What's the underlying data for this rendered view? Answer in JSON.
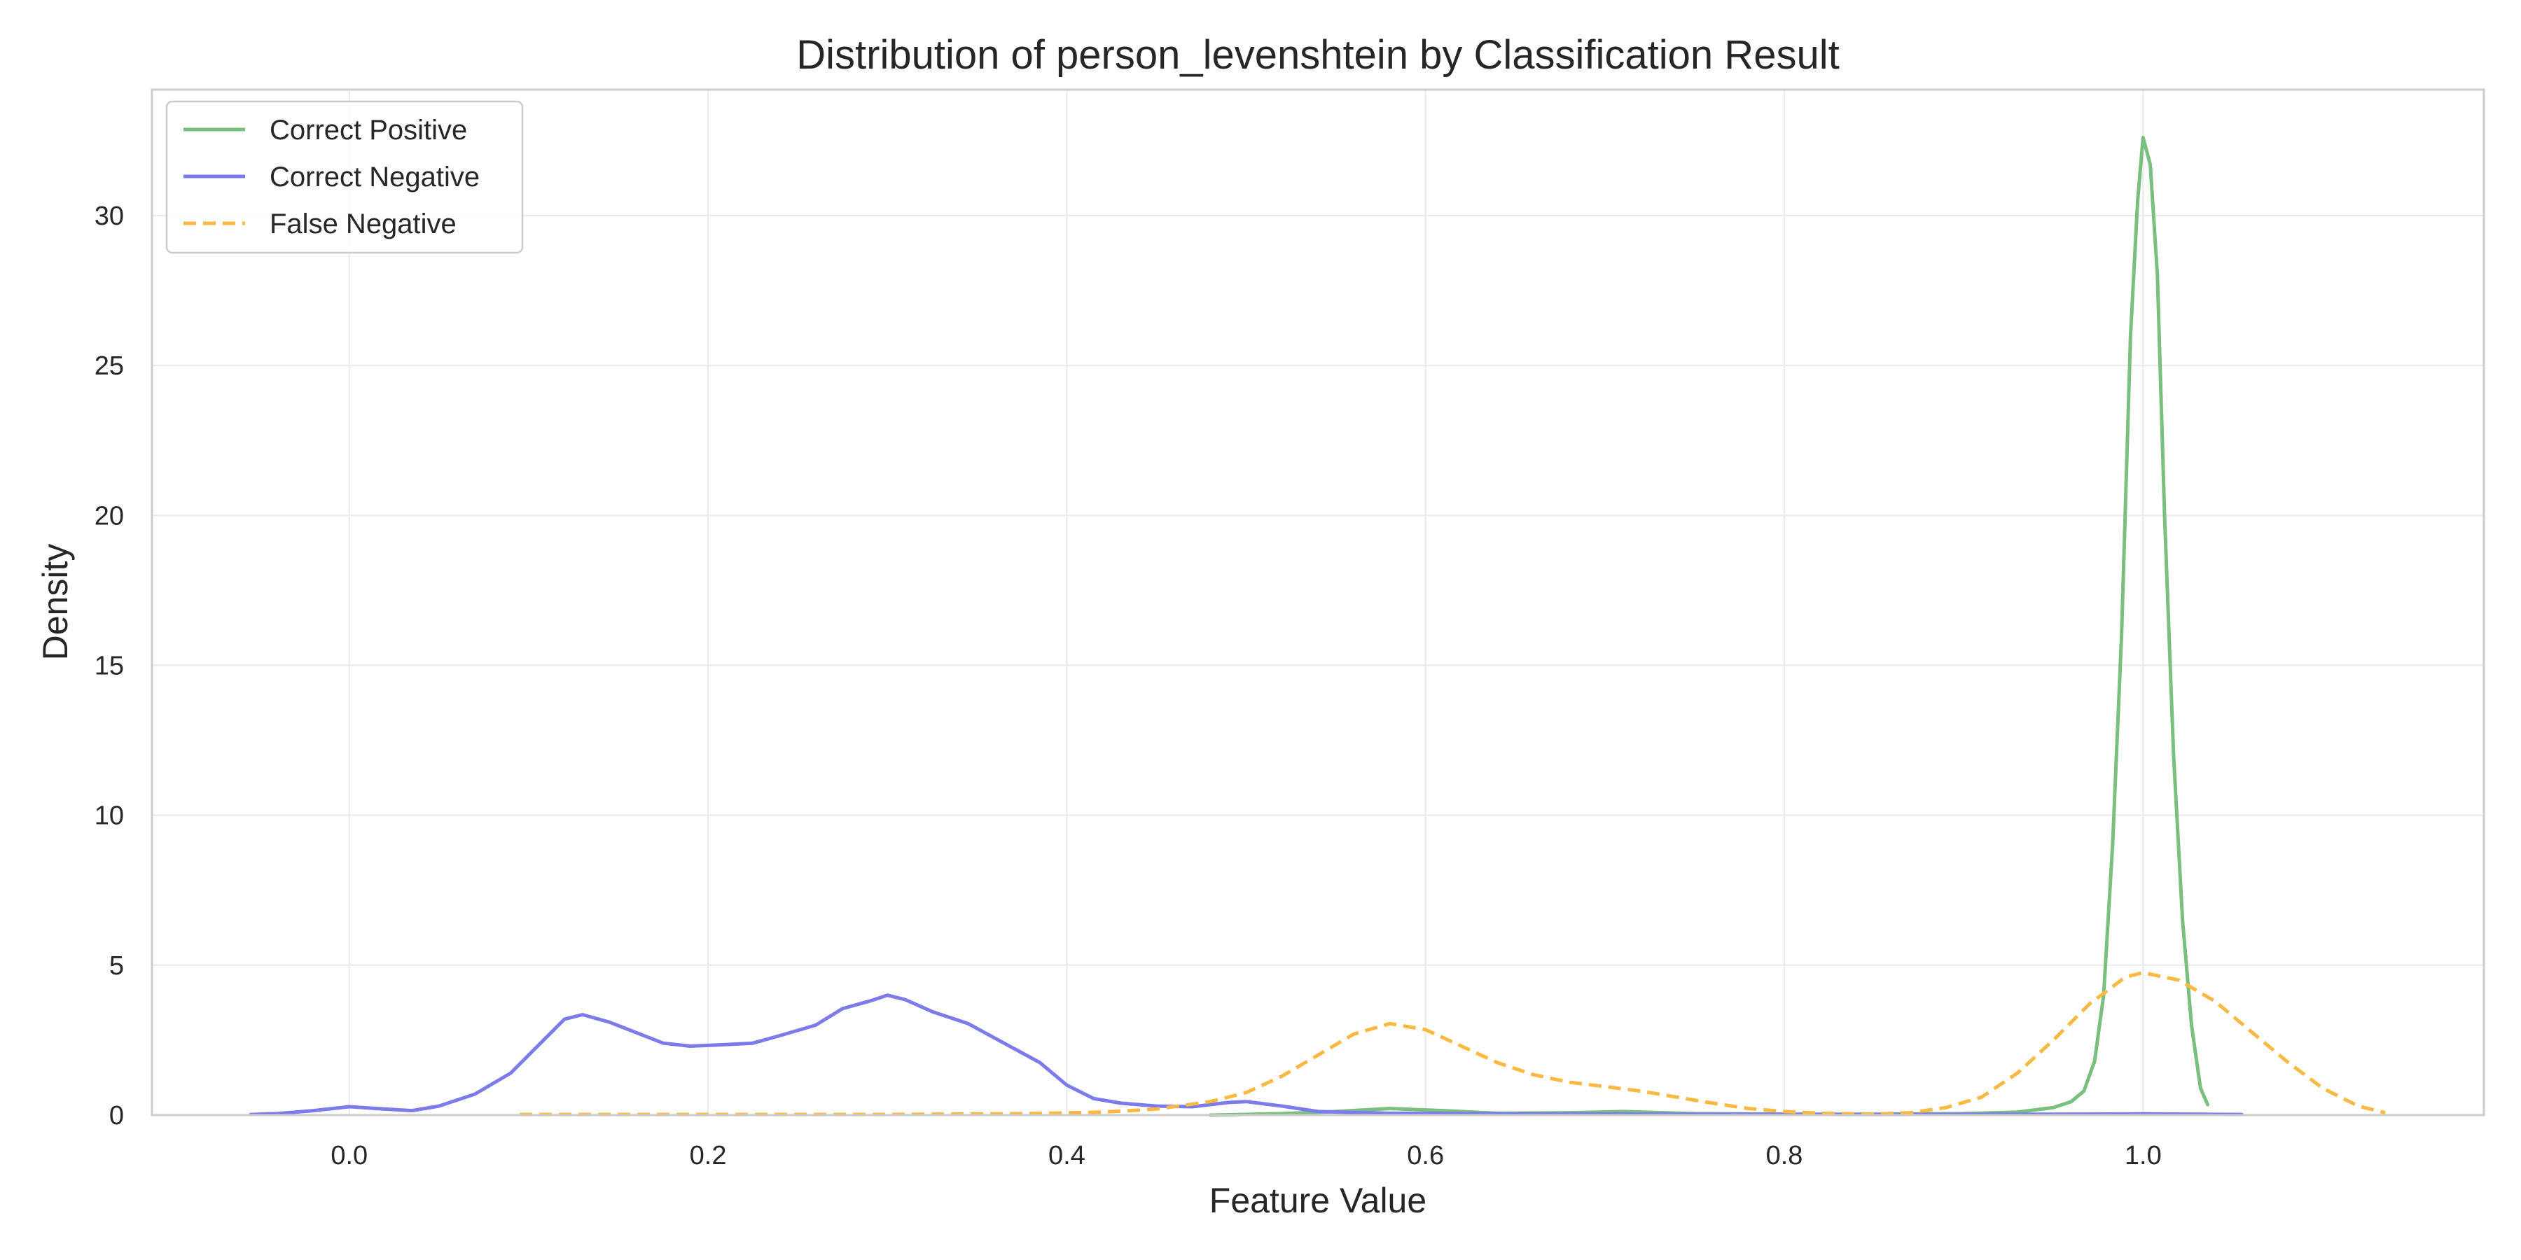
{
  "chart_data": {
    "type": "line",
    "title": "Distribution of person_levenshtein by Classification Result",
    "xlabel": "Feature Value",
    "ylabel": "Density",
    "xlim": [
      -0.11,
      1.19
    ],
    "ylim": [
      0,
      34.2
    ],
    "xticks": [
      "0.0",
      "0.2",
      "0.4",
      "0.6",
      "0.8",
      "1.0"
    ],
    "yticks": [
      "0",
      "5",
      "10",
      "15",
      "20",
      "25",
      "30"
    ],
    "grid": true,
    "legend_position": "top-left",
    "series": [
      {
        "name": "Correct Positive",
        "color": "#79bf7e",
        "dash": "solid",
        "points": [
          [
            0.48,
            0.0
          ],
          [
            0.52,
            0.05
          ],
          [
            0.55,
            0.12
          ],
          [
            0.58,
            0.22
          ],
          [
            0.61,
            0.15
          ],
          [
            0.64,
            0.06
          ],
          [
            0.68,
            0.08
          ],
          [
            0.71,
            0.12
          ],
          [
            0.75,
            0.05
          ],
          [
            0.8,
            0.03
          ],
          [
            0.85,
            0.03
          ],
          [
            0.9,
            0.05
          ],
          [
            0.93,
            0.1
          ],
          [
            0.95,
            0.25
          ],
          [
            0.96,
            0.45
          ],
          [
            0.967,
            0.8
          ],
          [
            0.973,
            1.8
          ],
          [
            0.978,
            4.0
          ],
          [
            0.983,
            9.0
          ],
          [
            0.988,
            16.0
          ],
          [
            0.993,
            26.0
          ],
          [
            0.997,
            30.5
          ],
          [
            1.0,
            32.6
          ],
          [
            1.004,
            31.7
          ],
          [
            1.008,
            28.0
          ],
          [
            1.012,
            20.0
          ],
          [
            1.017,
            12.0
          ],
          [
            1.022,
            6.5
          ],
          [
            1.027,
            3.0
          ],
          [
            1.032,
            0.9
          ],
          [
            1.036,
            0.35
          ]
        ]
      },
      {
        "name": "Correct Negative",
        "color": "#7b7bec",
        "dash": "solid",
        "points": [
          [
            -0.055,
            0.02
          ],
          [
            -0.04,
            0.05
          ],
          [
            -0.02,
            0.15
          ],
          [
            0.0,
            0.28
          ],
          [
            0.02,
            0.2
          ],
          [
            0.035,
            0.15
          ],
          [
            0.05,
            0.3
          ],
          [
            0.07,
            0.7
          ],
          [
            0.09,
            1.4
          ],
          [
            0.105,
            2.3
          ],
          [
            0.12,
            3.2
          ],
          [
            0.13,
            3.35
          ],
          [
            0.145,
            3.1
          ],
          [
            0.16,
            2.75
          ],
          [
            0.175,
            2.4
          ],
          [
            0.19,
            2.3
          ],
          [
            0.21,
            2.35
          ],
          [
            0.225,
            2.4
          ],
          [
            0.24,
            2.65
          ],
          [
            0.26,
            3.0
          ],
          [
            0.275,
            3.55
          ],
          [
            0.29,
            3.8
          ],
          [
            0.3,
            4.0
          ],
          [
            0.31,
            3.85
          ],
          [
            0.325,
            3.45
          ],
          [
            0.345,
            3.05
          ],
          [
            0.365,
            2.4
          ],
          [
            0.385,
            1.75
          ],
          [
            0.4,
            1.0
          ],
          [
            0.415,
            0.55
          ],
          [
            0.43,
            0.4
          ],
          [
            0.45,
            0.3
          ],
          [
            0.47,
            0.28
          ],
          [
            0.49,
            0.42
          ],
          [
            0.5,
            0.45
          ],
          [
            0.52,
            0.3
          ],
          [
            0.54,
            0.12
          ],
          [
            0.58,
            0.06
          ],
          [
            0.65,
            0.04
          ],
          [
            0.75,
            0.03
          ],
          [
            0.85,
            0.02
          ],
          [
            0.95,
            0.03
          ],
          [
            1.0,
            0.04
          ],
          [
            1.055,
            0.02
          ]
        ]
      },
      {
        "name": "False Negative",
        "color": "#fbb943",
        "dash": "dashed",
        "points": [
          [
            0.095,
            0.02
          ],
          [
            0.2,
            0.02
          ],
          [
            0.3,
            0.02
          ],
          [
            0.38,
            0.05
          ],
          [
            0.42,
            0.1
          ],
          [
            0.45,
            0.2
          ],
          [
            0.48,
            0.45
          ],
          [
            0.5,
            0.75
          ],
          [
            0.52,
            1.3
          ],
          [
            0.54,
            2.0
          ],
          [
            0.56,
            2.7
          ],
          [
            0.58,
            3.05
          ],
          [
            0.6,
            2.85
          ],
          [
            0.62,
            2.3
          ],
          [
            0.64,
            1.75
          ],
          [
            0.66,
            1.35
          ],
          [
            0.68,
            1.1
          ],
          [
            0.7,
            0.95
          ],
          [
            0.72,
            0.8
          ],
          [
            0.74,
            0.6
          ],
          [
            0.76,
            0.4
          ],
          [
            0.78,
            0.22
          ],
          [
            0.8,
            0.12
          ],
          [
            0.82,
            0.06
          ],
          [
            0.85,
            0.03
          ],
          [
            0.87,
            0.08
          ],
          [
            0.89,
            0.25
          ],
          [
            0.91,
            0.6
          ],
          [
            0.93,
            1.4
          ],
          [
            0.95,
            2.5
          ],
          [
            0.97,
            3.7
          ],
          [
            0.99,
            4.6
          ],
          [
            1.0,
            4.75
          ],
          [
            1.02,
            4.5
          ],
          [
            1.04,
            3.8
          ],
          [
            1.06,
            2.8
          ],
          [
            1.08,
            1.8
          ],
          [
            1.1,
            0.9
          ],
          [
            1.12,
            0.3
          ],
          [
            1.135,
            0.08
          ]
        ]
      }
    ]
  }
}
